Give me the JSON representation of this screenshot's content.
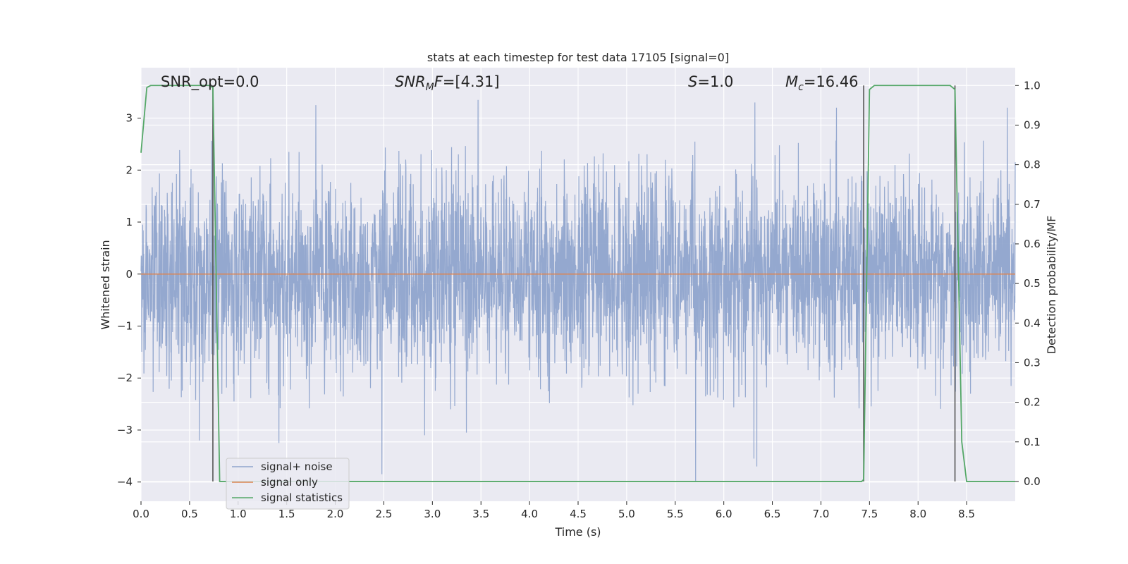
{
  "chart_data": {
    "type": "line",
    "title": "stats at each timestep for test data 17105 [signal=0]",
    "xlabel": "Time (s)",
    "ylabel": "Whitened strain",
    "y2label": "Detection probability/MF",
    "xlim": [
      0.0,
      9.0
    ],
    "ylim": [
      -4.37,
      3.97
    ],
    "y2lim": [
      -0.05,
      1.045
    ],
    "x_ticks": [
      "0.0",
      "0.5",
      "1.0",
      "1.5",
      "2.0",
      "2.5",
      "3.0",
      "3.5",
      "4.0",
      "4.5",
      "5.0",
      "5.5",
      "6.0",
      "6.5",
      "7.0",
      "7.5",
      "8.0",
      "8.5"
    ],
    "x_tick_values": [
      0.0,
      0.5,
      1.0,
      1.5,
      2.0,
      2.5,
      3.0,
      3.5,
      4.0,
      4.5,
      5.0,
      5.5,
      6.0,
      6.5,
      7.0,
      7.5,
      8.0,
      8.5
    ],
    "y_ticks": [
      "−4",
      "−3",
      "−2",
      "−1",
      "0",
      "1",
      "2",
      "3"
    ],
    "y_tick_values": [
      -4,
      -3,
      -2,
      -1,
      0,
      1,
      2,
      3
    ],
    "y2_ticks": [
      "0.0",
      "0.1",
      "0.2",
      "0.3",
      "0.4",
      "0.5",
      "0.6",
      "0.7",
      "0.8",
      "0.9",
      "1.0"
    ],
    "y2_tick_values": [
      0.0,
      0.1,
      0.2,
      0.3,
      0.4,
      0.5,
      0.6,
      0.7,
      0.8,
      0.9,
      1.0
    ],
    "grid": true,
    "legend_position": "lower-left",
    "annotations": [
      {
        "text": "SNR_opt=0.0",
        "x": 0.19,
        "y": 3.7
      },
      {
        "text": "SNR_MF=[4.31]",
        "x": 2.6,
        "y": 3.7
      },
      {
        "text": "S=1.0",
        "x": 5.6,
        "y": 3.7
      },
      {
        "text": "M_c=16.46",
        "x": 6.6,
        "y": 3.7
      }
    ],
    "vertical_lines": [
      0.74,
      7.44,
      8.38
    ],
    "series": [
      {
        "name": "signal+ noise",
        "color": "#8fa4cc",
        "description": "whitened strain noise, roughly Gaussian between about -2.5 and 2.5 with spikes to 3.35 and -4.0",
        "peaks": [
          {
            "x": 0.74,
            "y": 2.8
          },
          {
            "x": 1.8,
            "y": 3.25
          },
          {
            "x": 3.47,
            "y": 3.35
          },
          {
            "x": 6.32,
            "y": 3.3
          },
          {
            "x": 7.16,
            "y": 3.2
          },
          {
            "x": 8.92,
            "y": 3.2
          }
        ],
        "troughs": [
          {
            "x": 0.6,
            "y": -3.2
          },
          {
            "x": 1.42,
            "y": -3.25
          },
          {
            "x": 2.48,
            "y": -3.85
          },
          {
            "x": 2.92,
            "y": -3.1
          },
          {
            "x": 3.35,
            "y": -3.05
          },
          {
            "x": 5.71,
            "y": -4.0
          },
          {
            "x": 6.31,
            "y": -3.55
          },
          {
            "x": 6.34,
            "y": -3.7
          }
        ]
      },
      {
        "name": "signal only",
        "color": "#dd8452",
        "x": [
          0.0,
          9.0
        ],
        "y": [
          0.0,
          0.0
        ]
      },
      {
        "name": "signal statistics",
        "color": "#55a868",
        "axis": "right",
        "x": [
          0.0,
          0.06,
          0.1,
          0.7,
          0.74,
          0.81,
          7.42,
          7.44,
          7.5,
          7.55,
          8.0,
          8.33,
          8.38,
          8.45,
          8.5,
          9.0
        ],
        "y": [
          0.83,
          0.995,
          1.0,
          1.0,
          0.995,
          0.0,
          0.0,
          0.005,
          0.99,
          1.0,
          1.0,
          1.0,
          0.99,
          0.1,
          0.0,
          0.0
        ]
      }
    ]
  }
}
